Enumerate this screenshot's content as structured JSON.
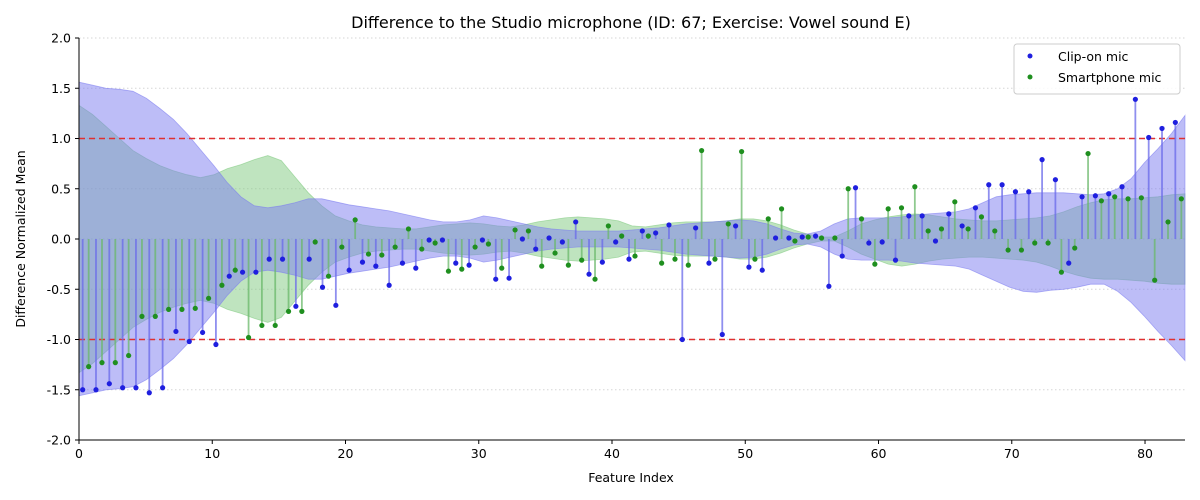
{
  "chart_data": {
    "type": "scatter",
    "title": "Difference to the Studio microphone (ID: 67; Exercise: Vowel sound E)",
    "xlabel": "Feature Index",
    "ylabel": "Difference Normalized Mean",
    "xlim": [
      0,
      83
    ],
    "ylim": [
      -2.0,
      2.0
    ],
    "xticks": [
      "0",
      "10",
      "20",
      "30",
      "40",
      "50",
      "60",
      "70",
      "80"
    ],
    "yticks": [
      "-2.0",
      "-1.5",
      "-1.0",
      "-0.5",
      "0.0",
      "0.5",
      "1.0",
      "1.5",
      "2.0"
    ],
    "grid": "horizontal dotted",
    "legend_position": "top-right",
    "thresholds": [
      1.0,
      -1.0
    ],
    "colors": {
      "clip": "#1f1fdf",
      "phone": "#1f8f1f",
      "clip_band": "#7b7bf0",
      "phone_band": "#7fc97f",
      "threshold": "#e03030"
    },
    "series": [
      {
        "name": "Clip-on mic",
        "values": [
          -1.5,
          -1.5,
          -1.44,
          -1.48,
          -1.48,
          -1.53,
          -1.48,
          -0.92,
          -1.02,
          -0.93,
          -1.05,
          -0.37,
          -0.33,
          -0.33,
          -0.2,
          -0.2,
          -0.67,
          -0.2,
          -0.48,
          -0.66,
          -0.31,
          -0.23,
          -0.27,
          -0.46,
          -0.24,
          -0.29,
          -0.01,
          -0.01,
          -0.24,
          -0.26,
          -0.01,
          -0.4,
          -0.39,
          0.0,
          -0.1,
          0.01,
          -0.03,
          0.17,
          -0.35,
          -0.23,
          -0.03,
          -0.2,
          0.08,
          0.06,
          0.14,
          -1.0,
          0.11,
          -0.24,
          -0.95,
          0.13,
          -0.28,
          -0.31,
          0.01,
          0.01,
          0.02,
          0.03,
          -0.47,
          -0.17,
          0.51,
          -0.04,
          -0.03,
          -0.21,
          0.23,
          0.23,
          -0.02,
          0.25,
          0.13,
          0.31,
          0.54,
          0.54,
          0.47,
          0.47,
          0.79,
          0.59,
          -0.24,
          0.42,
          0.43,
          0.45,
          0.52,
          1.39,
          1.01,
          1.1,
          1.16
        ],
        "band_upper": [
          1.56,
          1.53,
          1.5,
          1.49,
          1.47,
          1.4,
          1.3,
          1.19,
          1.05,
          0.89,
          0.73,
          0.56,
          0.42,
          0.33,
          0.31,
          0.33,
          0.36,
          0.4,
          0.4,
          0.37,
          0.34,
          0.32,
          0.3,
          0.28,
          0.25,
          0.22,
          0.19,
          0.17,
          0.17,
          0.19,
          0.23,
          0.21,
          0.18,
          0.15,
          0.12,
          0.1,
          0.09,
          0.08,
          0.08,
          0.08,
          0.08,
          0.09,
          0.1,
          0.11,
          0.13,
          0.15,
          0.16,
          0.17,
          0.18,
          0.19,
          0.18,
          0.15,
          0.1,
          0.06,
          0.05,
          0.08,
          0.15,
          0.2,
          0.21,
          0.21,
          0.21,
          0.22,
          0.24,
          0.25,
          0.26,
          0.27,
          0.3,
          0.36,
          0.42,
          0.44,
          0.45,
          0.46,
          0.46,
          0.46,
          0.45,
          0.44,
          0.45,
          0.5,
          0.6,
          0.76,
          0.9,
          1.05,
          1.23
        ],
        "band_lower": [
          -1.56,
          -1.53,
          -1.5,
          -1.49,
          -1.47,
          -1.4,
          -1.3,
          -1.19,
          -1.05,
          -0.89,
          -0.73,
          -0.56,
          -0.42,
          -0.33,
          -0.31,
          -0.33,
          -0.36,
          -0.4,
          -0.4,
          -0.37,
          -0.34,
          -0.32,
          -0.3,
          -0.28,
          -0.25,
          -0.22,
          -0.19,
          -0.17,
          -0.17,
          -0.19,
          -0.23,
          -0.21,
          -0.18,
          -0.15,
          -0.12,
          -0.1,
          -0.09,
          -0.08,
          -0.08,
          -0.08,
          -0.08,
          -0.09,
          -0.1,
          -0.11,
          -0.13,
          -0.15,
          -0.16,
          -0.17,
          -0.18,
          -0.19,
          -0.18,
          -0.15,
          -0.1,
          -0.06,
          -0.05,
          -0.08,
          -0.15,
          -0.2,
          -0.21,
          -0.21,
          -0.21,
          -0.22,
          -0.24,
          -0.25,
          -0.26,
          -0.27,
          -0.3,
          -0.36,
          -0.42,
          -0.48,
          -0.52,
          -0.53,
          -0.51,
          -0.5,
          -0.48,
          -0.45,
          -0.45,
          -0.52,
          -0.63,
          -0.77,
          -0.92,
          -1.06,
          -1.21
        ]
      },
      {
        "name": "Smartphone mic",
        "values": [
          -1.27,
          -1.23,
          -1.23,
          -1.16,
          -0.77,
          -0.77,
          -0.7,
          -0.7,
          -0.69,
          -0.59,
          -0.46,
          -0.31,
          -0.98,
          -0.86,
          -0.86,
          -0.72,
          -0.72,
          -0.03,
          -0.37,
          -0.08,
          0.19,
          -0.15,
          -0.16,
          -0.08,
          0.1,
          -0.1,
          -0.04,
          -0.32,
          -0.3,
          -0.08,
          -0.05,
          -0.29,
          0.09,
          0.08,
          -0.27,
          -0.14,
          -0.26,
          -0.21,
          -0.4,
          0.13,
          0.03,
          -0.17,
          0.03,
          -0.24,
          -0.2,
          -0.26,
          0.88,
          -0.2,
          0.15,
          0.87,
          -0.2,
          0.2,
          0.3,
          -0.02,
          0.02,
          0.01,
          0.01,
          0.5,
          0.2,
          -0.25,
          0.3,
          0.31,
          0.52,
          0.08,
          0.1,
          0.37,
          0.1,
          0.22,
          0.08,
          -0.11,
          -0.11,
          -0.04,
          -0.04,
          -0.33,
          -0.09,
          0.85,
          0.38,
          0.42,
          0.4,
          0.41,
          -0.41,
          0.17,
          0.4
        ],
        "band_upper": [
          1.33,
          1.24,
          1.12,
          1.0,
          0.88,
          0.8,
          0.73,
          0.68,
          0.64,
          0.61,
          0.64,
          0.7,
          0.74,
          0.79,
          0.83,
          0.78,
          0.62,
          0.46,
          0.33,
          0.23,
          0.18,
          0.14,
          0.12,
          0.11,
          0.1,
          0.1,
          0.12,
          0.14,
          0.15,
          0.16,
          0.15,
          0.13,
          0.12,
          0.14,
          0.17,
          0.19,
          0.21,
          0.22,
          0.21,
          0.2,
          0.18,
          0.13,
          0.12,
          0.14,
          0.16,
          0.17,
          0.17,
          0.17,
          0.18,
          0.2,
          0.2,
          0.18,
          0.14,
          0.09,
          0.05,
          0.02,
          0.02,
          0.08,
          0.15,
          0.19,
          0.22,
          0.24,
          0.25,
          0.24,
          0.22,
          0.2,
          0.19,
          0.18,
          0.18,
          0.19,
          0.2,
          0.21,
          0.23,
          0.27,
          0.32,
          0.36,
          0.39,
          0.4,
          0.4,
          0.41,
          0.42,
          0.44,
          0.45
        ],
        "band_lower": [
          -1.33,
          -1.24,
          -1.12,
          -1.0,
          -0.88,
          -0.8,
          -0.73,
          -0.68,
          -0.64,
          -0.61,
          -0.64,
          -0.7,
          -0.74,
          -0.79,
          -0.83,
          -0.78,
          -0.62,
          -0.46,
          -0.33,
          -0.23,
          -0.18,
          -0.14,
          -0.12,
          -0.11,
          -0.1,
          -0.1,
          -0.12,
          -0.14,
          -0.15,
          -0.16,
          -0.15,
          -0.13,
          -0.12,
          -0.14,
          -0.17,
          -0.19,
          -0.21,
          -0.22,
          -0.21,
          -0.2,
          -0.18,
          -0.13,
          -0.12,
          -0.14,
          -0.16,
          -0.17,
          -0.17,
          -0.17,
          -0.18,
          -0.2,
          -0.2,
          -0.18,
          -0.14,
          -0.09,
          -0.05,
          -0.02,
          -0.02,
          -0.08,
          -0.15,
          -0.2,
          -0.25,
          -0.27,
          -0.25,
          -0.22,
          -0.2,
          -0.19,
          -0.18,
          -0.18,
          -0.19,
          -0.2,
          -0.21,
          -0.23,
          -0.27,
          -0.32,
          -0.36,
          -0.39,
          -0.4,
          -0.4,
          -0.41,
          -0.42,
          -0.44,
          -0.45,
          -0.45
        ]
      }
    ]
  }
}
